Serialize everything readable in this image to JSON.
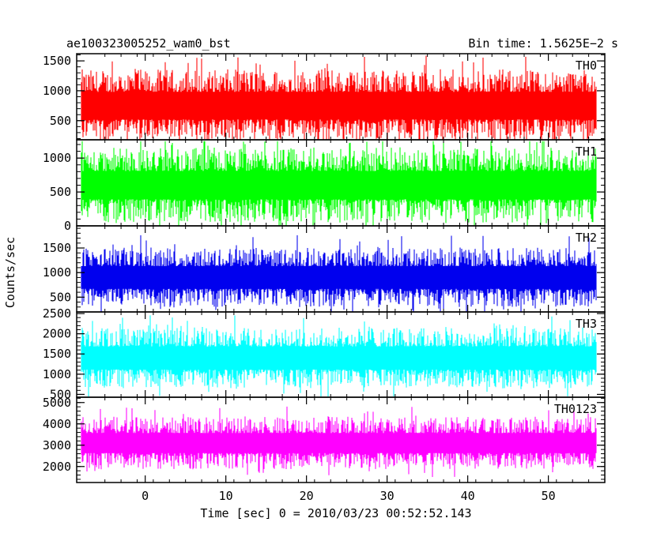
{
  "chart_data": {
    "type": "line",
    "title_left": "ae100323005252_wam0_bst",
    "title_right": "Bin time: 1.5625E−2 s",
    "xlabel": "Time [sec] 0 = 2010/03/23 00:52:52.143",
    "ylabel": "Counts/sec",
    "xlim": [
      -8.5,
      57
    ],
    "x_ticks": [
      0,
      10,
      20,
      30,
      40,
      50
    ],
    "x_tick_labels": [
      "0",
      "10",
      "20",
      "30",
      "40",
      "50"
    ],
    "x_data_range": [
      -8,
      56
    ],
    "bin_time": 0.015625,
    "series": [
      {
        "name": "TH0",
        "color": "#ff0000",
        "ylim": [
          180,
          1620
        ],
        "y_ticks": [
          500,
          1000,
          1500
        ],
        "base": 750,
        "spread": 420,
        "min": 180,
        "max": 1600
      },
      {
        "name": "TH1",
        "color": "#00ff00",
        "ylim": [
          0,
          1270
        ],
        "y_ticks": [
          0,
          500,
          1000
        ],
        "base": 600,
        "spread": 380,
        "min": 0,
        "max": 1250
      },
      {
        "name": "TH2",
        "color": "#0000ee",
        "ylim": [
          200,
          1950
        ],
        "y_ticks": [
          500,
          1000,
          1500
        ],
        "base": 900,
        "spread": 420,
        "min": 200,
        "max": 1900
      },
      {
        "name": "TH3",
        "color": "#00ffff",
        "ylim": [
          430,
          2540
        ],
        "y_ticks": [
          500,
          1000,
          1500,
          2000,
          2500
        ],
        "base": 1400,
        "spread": 520,
        "min": 450,
        "max": 2500
      },
      {
        "name": "TH0123",
        "color": "#ff00ff",
        "ylim": [
          1250,
          5250
        ],
        "y_ticks": [
          2000,
          3000,
          4000,
          5000
        ],
        "base": 3100,
        "spread": 850,
        "min": 1300,
        "max": 5150
      }
    ]
  }
}
